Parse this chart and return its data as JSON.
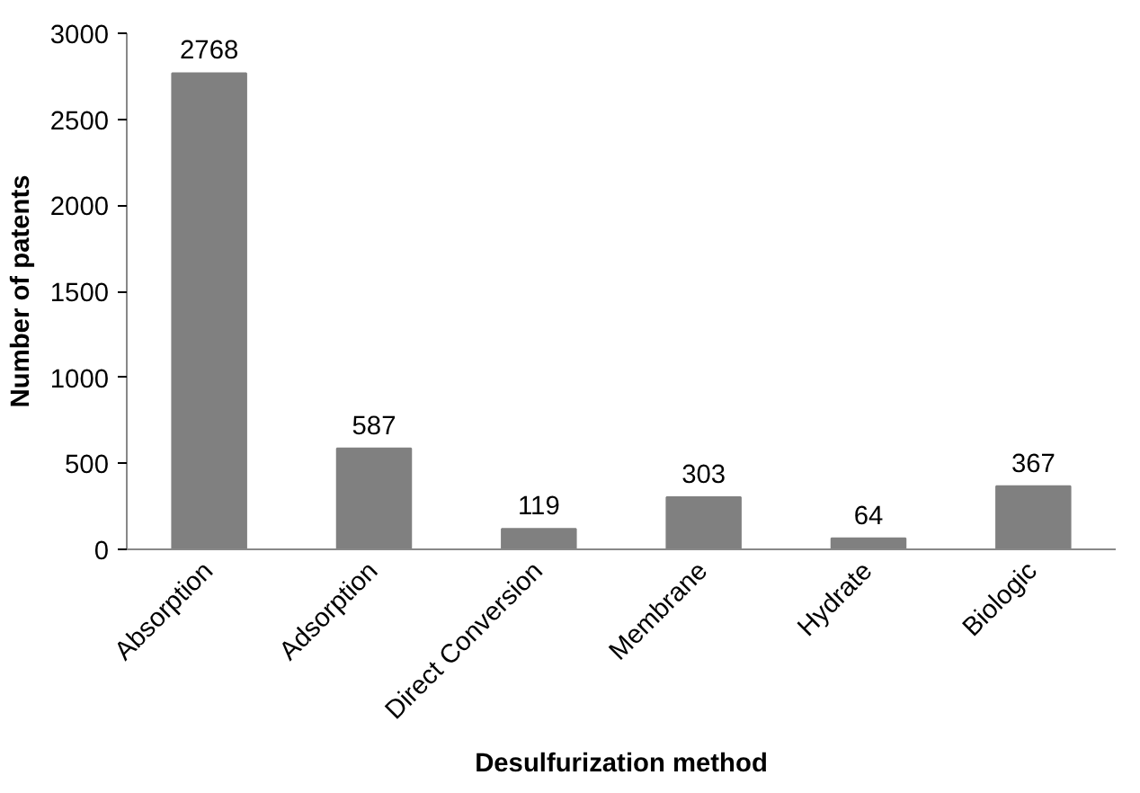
{
  "chart_data": {
    "type": "bar",
    "xlabel": "Desulfurization method",
    "ylabel": "Number of patents",
    "categories": [
      "Absorption",
      "Adsorption",
      "Direct Conversion",
      "Membrane",
      "Hydrate",
      "Biologic"
    ],
    "values": [
      2768,
      587,
      119,
      303,
      64,
      367
    ],
    "color": "#808080",
    "ylim": [
      0,
      3000
    ],
    "yticks": [
      0,
      500,
      1000,
      1500,
      2000,
      2500,
      3000
    ],
    "grid": false,
    "data_labels": true
  }
}
